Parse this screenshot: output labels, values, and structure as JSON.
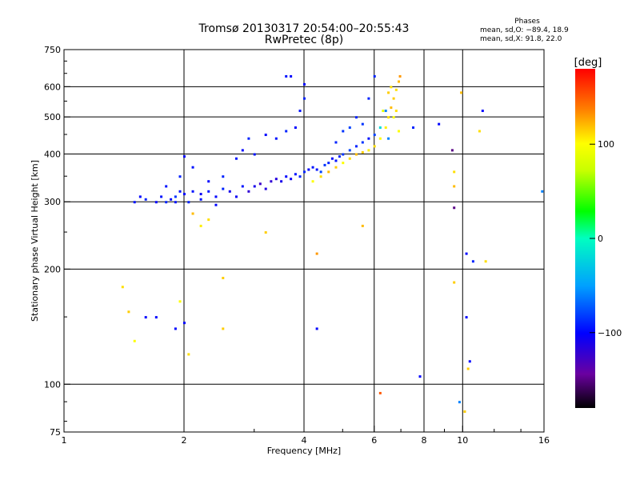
{
  "header": {
    "title_line1": "Tromsø 20130317 20:54:00–20:55:43",
    "title_line2": "RwPretec (8p)"
  },
  "phases": {
    "title": "Phases",
    "line_o": "mean, sd,O: −89.4, 18.9",
    "line_x": "mean, sd,X:  91.8, 22.0"
  },
  "colorbar": {
    "label": "[deg]",
    "min": -180,
    "max": 180,
    "ticks": [
      {
        "value": 100,
        "label": "100"
      },
      {
        "value": 0,
        "label": "0"
      },
      {
        "value": -100,
        "label": "−100"
      }
    ]
  },
  "chart_data": {
    "type": "scatter",
    "title": "Tromsø 20130317 20:54:00–20:55:43",
    "subtitle": "RwPretec (8p)",
    "xlabel": "Frequency [MHz]",
    "ylabel": "Stationary phase Virtual Height [km]",
    "xscale": "log",
    "yscale": "log",
    "xlim": [
      1,
      16
    ],
    "ylim": [
      75,
      750
    ],
    "grid": true,
    "xticks": [
      {
        "value": 1,
        "label": "1"
      },
      {
        "value": 2,
        "label": "2"
      },
      {
        "value": 4,
        "label": "4"
      },
      {
        "value": 6,
        "label": "6"
      },
      {
        "value": 8,
        "label": "8"
      },
      {
        "value": 10,
        "label": "10"
      },
      {
        "value": 16,
        "label": "16"
      }
    ],
    "xgrid": [
      2,
      4,
      6,
      8,
      10
    ],
    "yticks": [
      {
        "value": 75,
        "label": "75"
      },
      {
        "value": 100,
        "label": "100"
      },
      {
        "value": 200,
        "label": "200"
      },
      {
        "value": 300,
        "label": "300"
      },
      {
        "value": 400,
        "label": "400"
      },
      {
        "value": 500,
        "label": "500"
      },
      {
        "value": 600,
        "label": "600"
      },
      {
        "value": 750,
        "label": "750"
      }
    ],
    "ygrid": [
      100,
      200,
      300,
      400,
      500,
      600
    ],
    "points": [
      [
        1.5,
        300,
        -95
      ],
      [
        1.55,
        310,
        -100
      ],
      [
        1.6,
        305,
        -90
      ],
      [
        1.7,
        300,
        -100
      ],
      [
        1.75,
        310,
        -95
      ],
      [
        1.8,
        300,
        -90
      ],
      [
        1.85,
        305,
        -100
      ],
      [
        1.9,
        310,
        -85
      ],
      [
        1.95,
        320,
        -95
      ],
      [
        2.0,
        315,
        -100
      ],
      [
        2.05,
        300,
        -90
      ],
      [
        2.1,
        320,
        -95
      ],
      [
        2.2,
        315,
        -105
      ],
      [
        2.3,
        320,
        -95
      ],
      [
        2.4,
        310,
        -100
      ],
      [
        2.5,
        325,
        -90
      ],
      [
        2.6,
        320,
        -110
      ],
      [
        2.7,
        310,
        -105
      ],
      [
        2.8,
        330,
        -95
      ],
      [
        2.9,
        320,
        -120
      ],
      [
        3.0,
        330,
        -110
      ],
      [
        3.1,
        335,
        -125
      ],
      [
        3.2,
        325,
        -115
      ],
      [
        3.3,
        340,
        -120
      ],
      [
        3.4,
        345,
        -115
      ],
      [
        3.5,
        340,
        -110
      ],
      [
        3.6,
        350,
        -100
      ],
      [
        3.7,
        345,
        -105
      ],
      [
        3.8,
        355,
        -95
      ],
      [
        3.9,
        350,
        -90
      ],
      [
        4.0,
        360,
        -90
      ],
      [
        4.1,
        365,
        -100
      ],
      [
        4.2,
        370,
        -95
      ],
      [
        4.3,
        365,
        -95
      ],
      [
        4.4,
        360,
        -80
      ],
      [
        4.5,
        375,
        -85
      ],
      [
        4.6,
        380,
        -90
      ],
      [
        4.7,
        390,
        -100
      ],
      [
        4.8,
        385,
        -95
      ],
      [
        4.9,
        395,
        -90
      ],
      [
        5.0,
        400,
        -85
      ],
      [
        5.2,
        410,
        -80
      ],
      [
        5.4,
        420,
        -90
      ],
      [
        5.6,
        430,
        -85
      ],
      [
        5.8,
        440,
        -95
      ],
      [
        6.0,
        450,
        -80
      ],
      [
        1.8,
        330,
        -95
      ],
      [
        1.95,
        350,
        -90
      ],
      [
        2.0,
        395,
        -100
      ],
      [
        2.1,
        370,
        -95
      ],
      [
        2.3,
        340,
        -100
      ],
      [
        2.5,
        350,
        -90
      ],
      [
        2.7,
        390,
        -95
      ],
      [
        2.8,
        410,
        -100
      ],
      [
        2.9,
        440,
        -90
      ],
      [
        3.0,
        400,
        -95
      ],
      [
        3.2,
        450,
        -100
      ],
      [
        3.4,
        440,
        -95
      ],
      [
        3.6,
        460,
        -90
      ],
      [
        3.8,
        470,
        -100
      ],
      [
        3.9,
        520,
        -95
      ],
      [
        4.0,
        560,
        -90
      ],
      [
        4.0,
        610,
        -100
      ],
      [
        3.6,
        640,
        -95
      ],
      [
        3.7,
        640,
        -100
      ],
      [
        4.8,
        430,
        -90
      ],
      [
        5.0,
        460,
        -85
      ],
      [
        5.2,
        470,
        -80
      ],
      [
        5.4,
        500,
        -90
      ],
      [
        5.6,
        480,
        -85
      ],
      [
        5.8,
        560,
        -90
      ],
      [
        6.0,
        640,
        -90
      ],
      [
        6.2,
        470,
        -20
      ],
      [
        6.4,
        520,
        -60
      ],
      [
        6.5,
        440,
        -60
      ],
      [
        7.5,
        470,
        -90
      ],
      [
        4.2,
        340,
        100
      ],
      [
        4.4,
        350,
        110
      ],
      [
        4.6,
        360,
        120
      ],
      [
        4.8,
        370,
        115
      ],
      [
        5.0,
        380,
        100
      ],
      [
        5.2,
        390,
        110
      ],
      [
        5.4,
        400,
        120
      ],
      [
        5.6,
        405,
        115
      ],
      [
        5.8,
        410,
        105
      ],
      [
        6.0,
        420,
        110
      ],
      [
        6.2,
        440,
        100
      ],
      [
        6.4,
        470,
        105
      ],
      [
        6.5,
        500,
        110
      ],
      [
        6.6,
        530,
        120
      ],
      [
        6.7,
        560,
        115
      ],
      [
        6.8,
        590,
        110
      ],
      [
        6.9,
        620,
        120
      ],
      [
        6.95,
        640,
        130
      ],
      [
        6.7,
        500,
        100
      ],
      [
        6.8,
        520,
        110
      ],
      [
        6.9,
        460,
        100
      ],
      [
        6.6,
        600,
        110
      ],
      [
        6.5,
        580,
        115
      ],
      [
        6.3,
        520,
        90
      ],
      [
        2.3,
        270,
        110
      ],
      [
        2.2,
        260,
        105
      ],
      [
        2.1,
        280,
        120
      ],
      [
        3.2,
        250,
        115
      ],
      [
        4.3,
        220,
        130
      ],
      [
        5.6,
        260,
        120
      ],
      [
        1.4,
        180,
        110
      ],
      [
        1.45,
        155,
        115
      ],
      [
        1.5,
        130,
        100
      ],
      [
        1.6,
        150,
        -100
      ],
      [
        1.7,
        150,
        -100
      ],
      [
        1.9,
        140,
        -100
      ],
      [
        2.0,
        145,
        -100
      ],
      [
        1.95,
        165,
        100
      ],
      [
        2.05,
        120,
        110
      ],
      [
        2.5,
        190,
        115
      ],
      [
        2.5,
        140,
        115
      ],
      [
        4.3,
        140,
        -100
      ],
      [
        6.2,
        95,
        150
      ],
      [
        7.8,
        105,
        -100
      ],
      [
        9.5,
        185,
        115
      ],
      [
        9.5,
        290,
        -150
      ],
      [
        9.5,
        330,
        120
      ],
      [
        9.5,
        360,
        110
      ],
      [
        9.9,
        580,
        120
      ],
      [
        10.1,
        85,
        115
      ],
      [
        10.2,
        220,
        -100
      ],
      [
        10.2,
        150,
        -100
      ],
      [
        10.3,
        110,
        115
      ],
      [
        10.4,
        115,
        -100
      ],
      [
        10.6,
        210,
        -90
      ],
      [
        11.0,
        460,
        110
      ],
      [
        11.2,
        520,
        -100
      ],
      [
        11.4,
        210,
        110
      ],
      [
        15.8,
        320,
        -60
      ],
      [
        9.8,
        90,
        -60
      ],
      [
        8.7,
        480,
        -100
      ],
      [
        9.4,
        410,
        -150
      ],
      [
        2.4,
        295,
        -100
      ],
      [
        2.2,
        305,
        -95
      ],
      [
        1.9,
        300,
        -95
      ]
    ]
  }
}
